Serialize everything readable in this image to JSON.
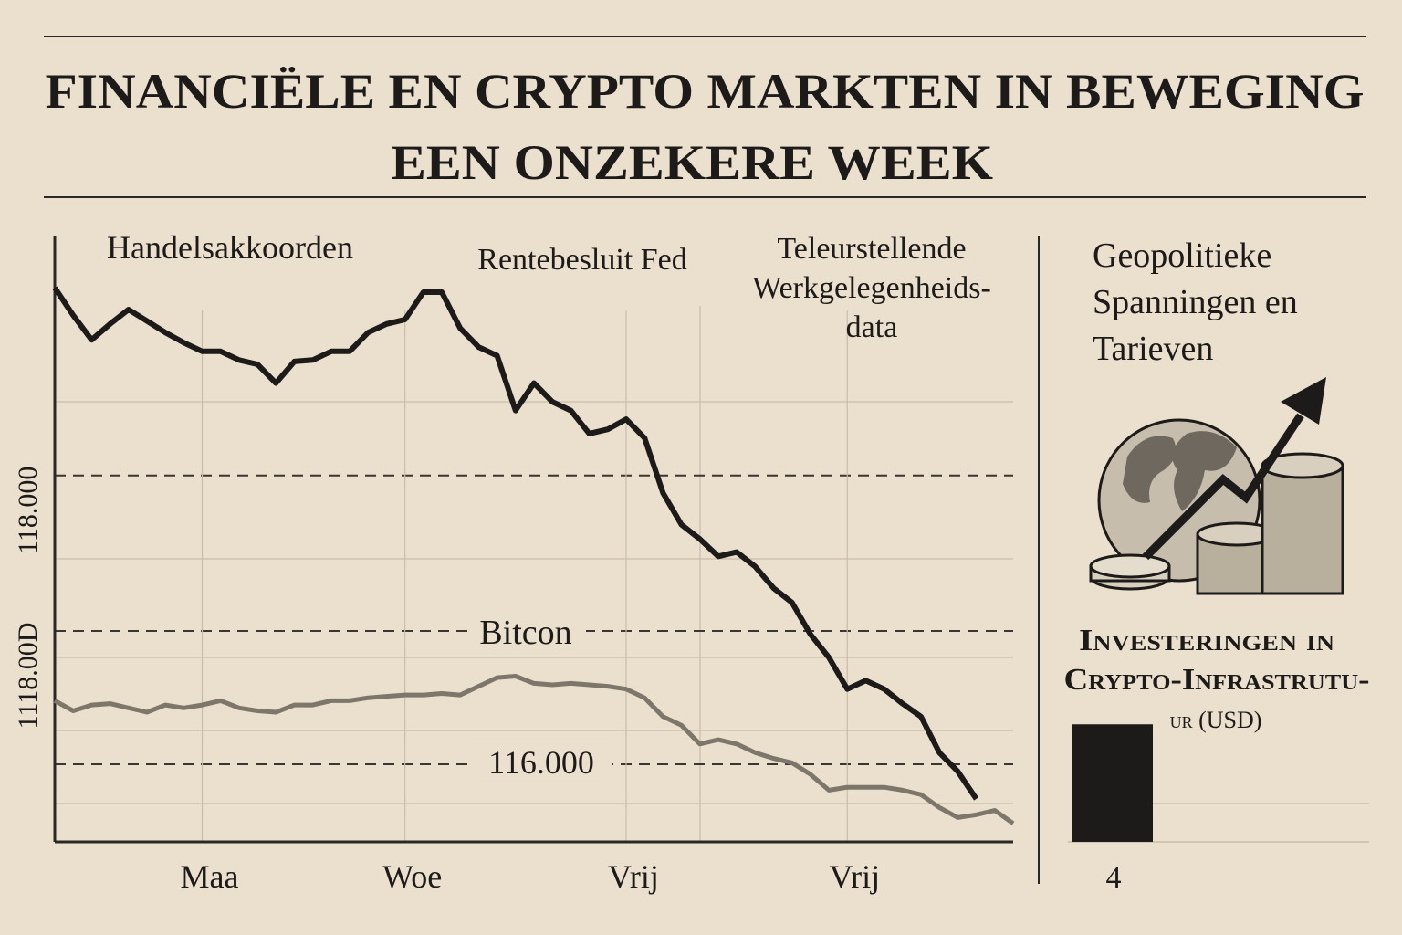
{
  "chart_data": [
    {
      "type": "line",
      "title": "FINANCIËLE EN CRYPTO MARKTEN IN BEWEGING",
      "subtitle": "EEN ONZEKERE WEEK",
      "categories": [
        null,
        null,
        null,
        null,
        null,
        null,
        null,
        null,
        "Maa",
        null,
        null,
        null,
        null,
        null,
        null,
        null,
        null,
        null,
        null,
        "Woe",
        null,
        null,
        null,
        null,
        null,
        null,
        null,
        null,
        null,
        null,
        null,
        "Vrij",
        null,
        null,
        null,
        null,
        null,
        null,
        null,
        null,
        null,
        null,
        null,
        "Vrij",
        null,
        null,
        null,
        null,
        null,
        null,
        null,
        null,
        null
      ],
      "series": [
        {
          "color": "#1c1b19",
          "values": [
            119300,
            119110,
            118940,
            119050,
            119150,
            119070,
            118990,
            118920,
            118860,
            118860,
            118800,
            118770,
            118640,
            118790,
            118800,
            118860,
            118860,
            118990,
            119050,
            119080,
            119270,
            119270,
            119020,
            118890,
            118830,
            118450,
            118640,
            118510,
            118450,
            118290,
            118320,
            118390,
            118260,
            117880,
            117660,
            117560,
            117440,
            117470,
            117370,
            117220,
            117120,
            116900,
            116740,
            116520,
            116580,
            116520,
            116420,
            116330,
            116080,
            115950,
            115760,
            null,
            null
          ]
        },
        {
          "name": "Bitcon",
          "color": "#7d776b",
          "values": [
            116440,
            116370,
            116410,
            116420,
            116390,
            116360,
            116410,
            116390,
            116410,
            116440,
            116390,
            116370,
            116360,
            116410,
            116410,
            116440,
            116440,
            116460,
            116470,
            116480,
            116480,
            116490,
            116480,
            116540,
            116600,
            116610,
            116560,
            116550,
            116560,
            116550,
            116540,
            116520,
            116460,
            116330,
            116270,
            116140,
            116170,
            116140,
            116080,
            116040,
            116010,
            115930,
            115820,
            115840,
            115840,
            115840,
            115820,
            115790,
            115700,
            115630,
            115650,
            115680,
            115590
          ]
        }
      ],
      "ylim": [
        115500,
        119700
      ],
      "yticks": [
        {
          "value": 118000,
          "label": "118.000"
        },
        {
          "value": 116000,
          "label": "116.000"
        }
      ],
      "annotations": [
        [
          "Handelsakkoorden"
        ],
        [
          "Rentebesluit Fed"
        ],
        [
          "Teleurstellende",
          "Werkgelegenheids-",
          "data"
        ],
        [
          "1118.00D"
        ]
      ]
    },
    {
      "type": "bar",
      "title": [
        "Investeringen in",
        "Crypto-Infrastrutu-",
        "ur (USD)"
      ],
      "categories": [
        "4"
      ],
      "values": [
        58
      ],
      "color": "#1c1b19",
      "ylim": [
        0,
        100
      ]
    }
  ],
  "sidebar": {
    "heading": [
      "Geopolitieke",
      "Spanningen en",
      "Tarieven"
    ]
  }
}
